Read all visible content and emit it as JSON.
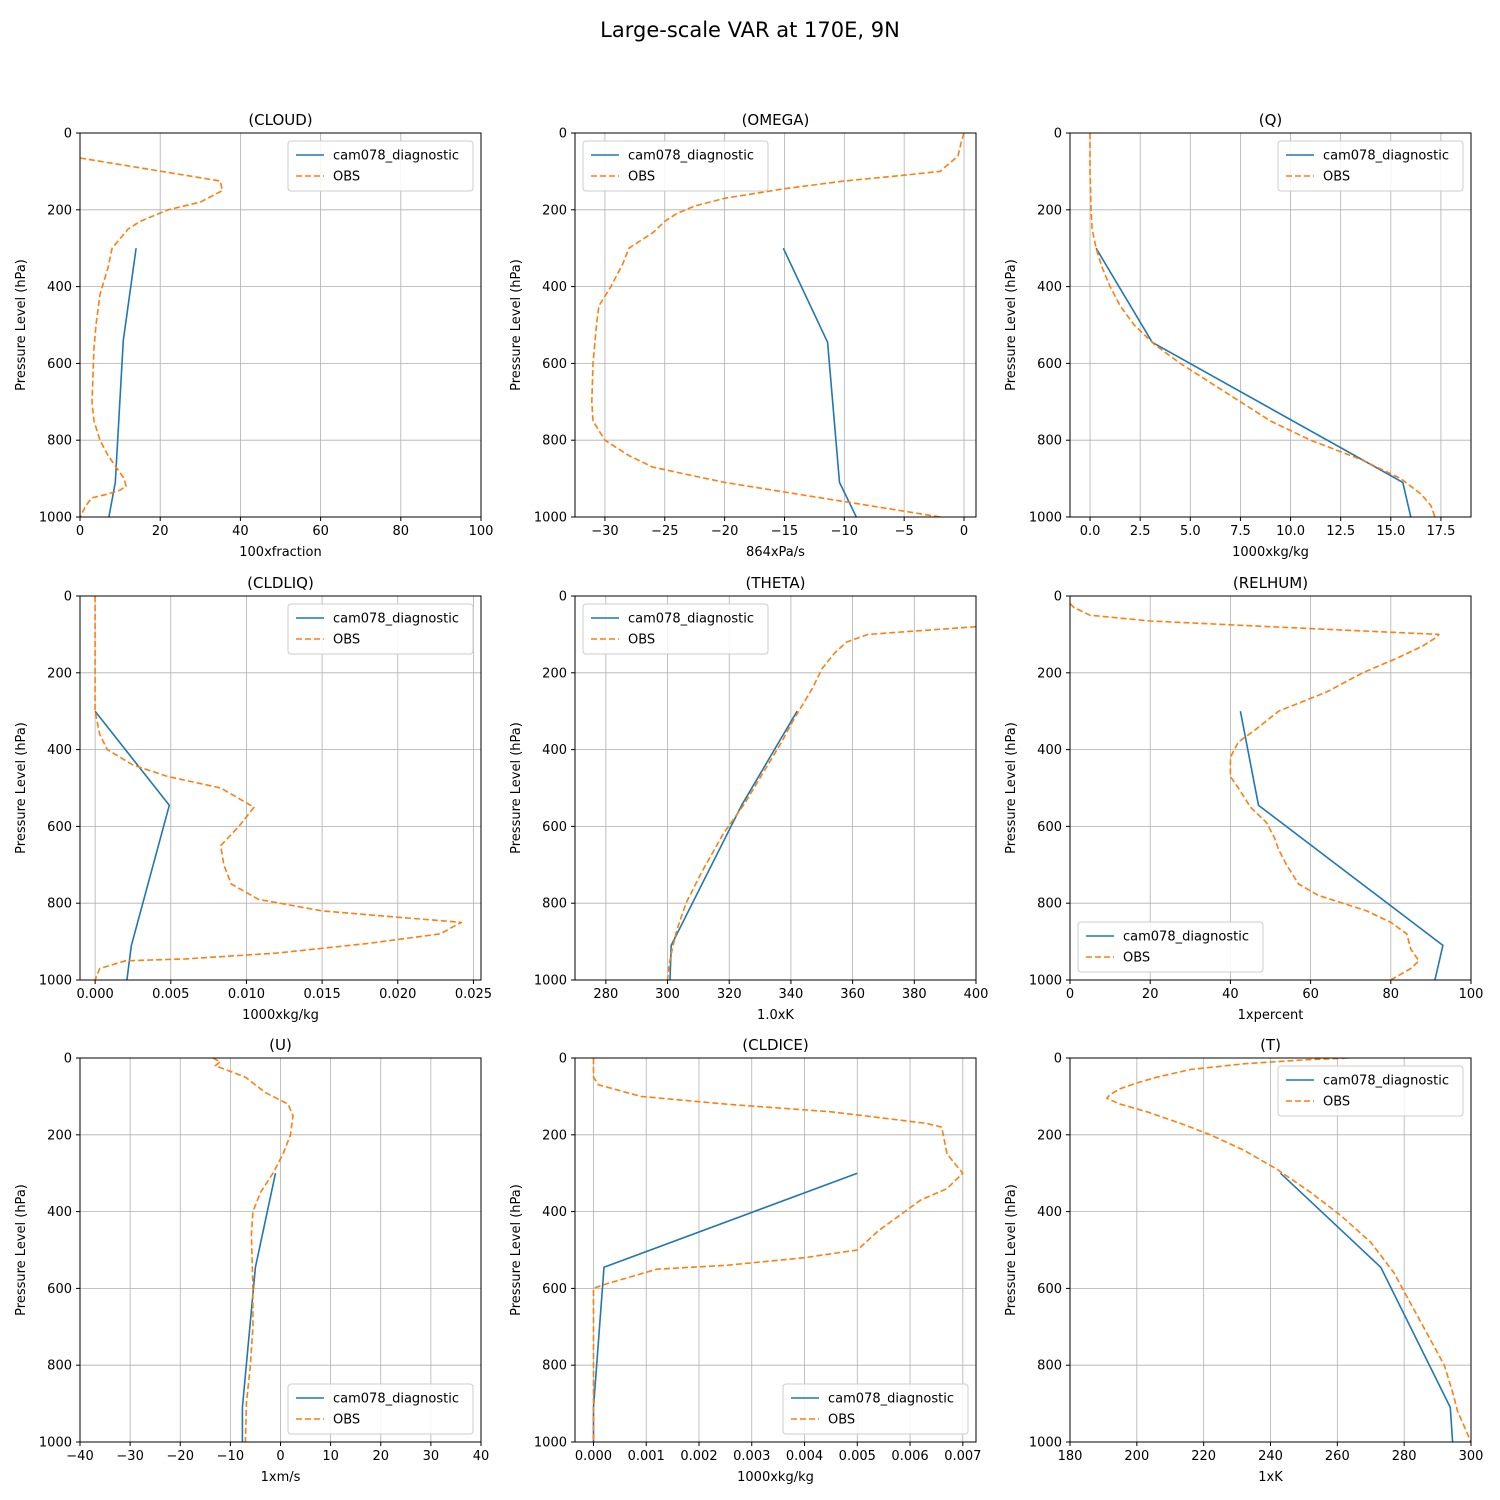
{
  "figure_title": "Large-scale VAR at 170E, 9N",
  "colors": {
    "model": "#1f77b4",
    "obs": "#ff7f0e",
    "grid": "#b0b0b0"
  },
  "chart_data": [
    {
      "type": "line",
      "title": "(CLOUD)",
      "xlabel": "100xfraction",
      "ylabel": "Pressure Level (hPa)",
      "xlim": [
        0,
        100
      ],
      "ylim": [
        1000,
        0
      ],
      "y_inverted": true,
      "xticks": [
        0,
        20,
        40,
        60,
        80,
        100
      ],
      "xtick_labels": [
        "0",
        "20",
        "40",
        "60",
        "80",
        "100"
      ],
      "yticks": [
        0,
        200,
        400,
        600,
        800,
        1000
      ],
      "ytick_labels": [
        "0",
        "200",
        "400",
        "600",
        "800",
        "1000"
      ],
      "grid": true,
      "legend_loc": "upper-right",
      "series": [
        {
          "name": "cam078_diagnostic",
          "style": "solid",
          "x": [
            14.0,
            10.8,
            8.8,
            7.2
          ],
          "y": [
            300,
            540,
            910,
            1000
          ]
        },
        {
          "name": "OBS",
          "style": "dashed",
          "x": [
            0,
            35,
            35.5,
            30,
            22,
            15,
            12,
            8,
            7,
            5,
            4,
            3.5,
            3,
            3.5,
            5,
            7,
            9,
            11,
            11.5,
            10,
            7,
            3,
            1.5,
            0
          ],
          "y": [
            65,
            125,
            150,
            180,
            200,
            230,
            250,
            300,
            350,
            420,
            500,
            560,
            700,
            750,
            800,
            840,
            870,
            900,
            920,
            930,
            940,
            950,
            970,
            1000
          ]
        }
      ]
    },
    {
      "type": "line",
      "title": "(OMEGA)",
      "xlabel": "864xPa/s",
      "ylabel": "Pressure Level (hPa)",
      "xlim": [
        -32.5,
        1
      ],
      "ylim": [
        1000,
        0
      ],
      "y_inverted": true,
      "xticks": [
        -30,
        -25,
        -20,
        -15,
        -10,
        -5,
        0
      ],
      "xtick_labels": [
        "−30",
        "−25",
        "−20",
        "−15",
        "−10",
        "−5",
        "0"
      ],
      "yticks": [
        0,
        200,
        400,
        600,
        800,
        1000
      ],
      "ytick_labels": [
        "0",
        "200",
        "400",
        "600",
        "800",
        "1000"
      ],
      "grid": true,
      "legend_loc": "upper-left",
      "series": [
        {
          "name": "cam078_diagnostic",
          "style": "solid",
          "x": [
            -15.1,
            -11.4,
            -10.4,
            -9.0
          ],
          "y": [
            300,
            545,
            910,
            1000
          ]
        },
        {
          "name": "OBS",
          "style": "dashed",
          "x": [
            0,
            -0.2,
            -0.5,
            -2,
            -5,
            -10,
            -15,
            -20,
            -22.5,
            -24,
            -25,
            -26,
            -27,
            -28,
            -28.5,
            -29.5,
            -30.5,
            -30.7,
            -31,
            -31.1,
            -31,
            -30,
            -28,
            -26,
            -23,
            -20,
            -16,
            -10,
            -5,
            -2
          ],
          "y": [
            0,
            20,
            60,
            100,
            110,
            125,
            145,
            170,
            190,
            210,
            230,
            260,
            280,
            300,
            340,
            400,
            450,
            500,
            600,
            700,
            750,
            800,
            840,
            870,
            890,
            910,
            930,
            960,
            985,
            1000
          ]
        }
      ]
    },
    {
      "type": "line",
      "title": "(Q)",
      "xlabel": "1000xkg/kg",
      "ylabel": "Pressure Level (hPa)",
      "xlim": [
        -1,
        19
      ],
      "ylim": [
        1000,
        0
      ],
      "y_inverted": true,
      "xticks": [
        0,
        2.5,
        5,
        7.5,
        10,
        12.5,
        15,
        17.5
      ],
      "xtick_labels": [
        "0.0",
        "2.5",
        "5.0",
        "7.5",
        "10.0",
        "12.5",
        "15.0",
        "17.5"
      ],
      "yticks": [
        0,
        200,
        400,
        600,
        800,
        1000
      ],
      "ytick_labels": [
        "0",
        "200",
        "400",
        "600",
        "800",
        "1000"
      ],
      "grid": true,
      "legend_loc": "upper-right",
      "series": [
        {
          "name": "cam078_diagnostic",
          "style": "solid",
          "x": [
            0.3,
            3.1,
            15.6,
            16.0
          ],
          "y": [
            300,
            545,
            910,
            1000
          ]
        },
        {
          "name": "OBS",
          "style": "dashed",
          "x": [
            0,
            0,
            0.05,
            0.1,
            0.3,
            0.6,
            1.0,
            1.5,
            2.2,
            3.2,
            4.5,
            6.0,
            7.5,
            9.0,
            11.0,
            13.5,
            15.5,
            16.5,
            17.0,
            17.2
          ],
          "y": [
            0,
            100,
            200,
            250,
            300,
            350,
            400,
            450,
            500,
            550,
            600,
            650,
            700,
            750,
            800,
            850,
            900,
            940,
            970,
            1000
          ]
        }
      ]
    },
    {
      "type": "line",
      "title": "(CLDLIQ)",
      "xlabel": "1000xkg/kg",
      "ylabel": "Pressure Level (hPa)",
      "xlim": [
        -0.001,
        0.0255
      ],
      "ylim": [
        1000,
        0
      ],
      "y_inverted": true,
      "xticks": [
        0,
        0.005,
        0.01,
        0.015,
        0.02,
        0.025
      ],
      "xtick_labels": [
        "0.000",
        "0.005",
        "0.010",
        "0.015",
        "0.020",
        "0.025"
      ],
      "yticks": [
        0,
        200,
        400,
        600,
        800,
        1000
      ],
      "ytick_labels": [
        "0",
        "200",
        "400",
        "600",
        "800",
        "1000"
      ],
      "grid": true,
      "legend_loc": "upper-right",
      "series": [
        {
          "name": "cam078_diagnostic",
          "style": "solid",
          "x": [
            0.0,
            0.0049,
            0.0024,
            0.0021
          ],
          "y": [
            300,
            545,
            910,
            1000
          ]
        },
        {
          "name": "OBS",
          "style": "dashed",
          "x": [
            0,
            0,
            0,
            0,
            0.0003,
            0.0008,
            0.0025,
            0.0048,
            0.0083,
            0.0105,
            0.0095,
            0.0083,
            0.0085,
            0.009,
            0.0108,
            0.015,
            0.018,
            0.0242,
            0.0228,
            0.018,
            0.012,
            0.006,
            0.002,
            0.0003,
            0
          ],
          "y": [
            0,
            100,
            200,
            300,
            360,
            400,
            440,
            470,
            500,
            550,
            600,
            650,
            700,
            750,
            790,
            820,
            830,
            850,
            880,
            905,
            930,
            945,
            950,
            970,
            1000
          ]
        }
      ]
    },
    {
      "type": "line",
      "title": "(THETA)",
      "xlabel": "1.0xK",
      "ylabel": "Pressure Level (hPa)",
      "xlim": [
        270,
        400
      ],
      "ylim": [
        1000,
        0
      ],
      "y_inverted": true,
      "xticks": [
        280,
        300,
        320,
        340,
        360,
        380,
        400
      ],
      "xtick_labels": [
        "280",
        "300",
        "320",
        "340",
        "360",
        "380",
        "400"
      ],
      "yticks": [
        0,
        200,
        400,
        600,
        800,
        1000
      ],
      "ytick_labels": [
        "0",
        "200",
        "400",
        "600",
        "800",
        "1000"
      ],
      "grid": true,
      "legend_loc": "upper-left",
      "series": [
        {
          "name": "cam078_diagnostic",
          "style": "solid",
          "x": [
            342.0,
            324.0,
            301.2,
            300.8
          ],
          "y": [
            300,
            545,
            910,
            1000
          ]
        },
        {
          "name": "OBS",
          "style": "dashed",
          "x": [
            400,
            365,
            358,
            354,
            350,
            347,
            344,
            341,
            337,
            331,
            325,
            318,
            311,
            306,
            303,
            301.5,
            300.5,
            300
          ],
          "y": [
            80,
            100,
            120,
            150,
            190,
            240,
            280,
            320,
            380,
            460,
            540,
            620,
            720,
            800,
            870,
            920,
            960,
            1000
          ]
        }
      ]
    },
    {
      "type": "line",
      "title": "(RELHUM)",
      "xlabel": "1xpercent",
      "ylabel": "Pressure Level (hPa)",
      "xlim": [
        0,
        100
      ],
      "ylim": [
        1000,
        0
      ],
      "y_inverted": true,
      "xticks": [
        0,
        20,
        40,
        60,
        80,
        100
      ],
      "xtick_labels": [
        "0",
        "20",
        "40",
        "60",
        "80",
        "100"
      ],
      "yticks": [
        0,
        200,
        400,
        600,
        800,
        1000
      ],
      "ytick_labels": [
        "0",
        "200",
        "400",
        "600",
        "800",
        "1000"
      ],
      "grid": true,
      "legend_loc": "lower-left",
      "series": [
        {
          "name": "cam078_diagnostic",
          "style": "solid",
          "x": [
            42.5,
            47.0,
            93.0,
            91.0
          ],
          "y": [
            300,
            545,
            910,
            1000
          ]
        },
        {
          "name": "OBS",
          "style": "dashed",
          "x": [
            0,
            1,
            5,
            20,
            60,
            92,
            91,
            88,
            82,
            73,
            64,
            52,
            46,
            42,
            40,
            40,
            42,
            45,
            49,
            51,
            52,
            54,
            57,
            62,
            68,
            74,
            80,
            84,
            85,
            87,
            85,
            80
          ],
          "y": [
            20,
            30,
            50,
            65,
            85,
            100,
            110,
            130,
            160,
            200,
            250,
            300,
            350,
            380,
            420,
            470,
            500,
            550,
            590,
            630,
            660,
            700,
            750,
            780,
            800,
            820,
            850,
            880,
            920,
            950,
            970,
            1000
          ]
        }
      ]
    },
    {
      "type": "line",
      "title": "(U)",
      "xlabel": "1xm/s",
      "ylabel": "Pressure Level (hPa)",
      "xlim": [
        -40,
        40
      ],
      "ylim": [
        1000,
        0
      ],
      "y_inverted": true,
      "xticks": [
        -40,
        -30,
        -20,
        -10,
        0,
        10,
        20,
        30,
        40
      ],
      "xtick_labels": [
        "−40",
        "−30",
        "−20",
        "−10",
        "0",
        "10",
        "20",
        "30",
        "40"
      ],
      "yticks": [
        0,
        200,
        400,
        600,
        800,
        1000
      ],
      "ytick_labels": [
        "0",
        "200",
        "400",
        "600",
        "800",
        "1000"
      ],
      "grid": true,
      "legend_loc": "lower-right",
      "series": [
        {
          "name": "cam078_diagnostic",
          "style": "solid",
          "x": [
            -1.0,
            -5.0,
            -7.6,
            -7.6
          ],
          "y": [
            300,
            545,
            910,
            1000
          ]
        },
        {
          "name": "OBS",
          "style": "dashed",
          "x": [
            -13.5,
            -12,
            -13,
            -11,
            -7,
            -5,
            -3,
            1.5,
            2.5,
            2.0,
            0.5,
            -1.5,
            -4,
            -5.5,
            -5.8,
            -5.5,
            -5.5,
            -6,
            -6.8,
            -7.0
          ],
          "y": [
            0,
            10,
            20,
            30,
            50,
            70,
            90,
            120,
            150,
            200,
            250,
            300,
            350,
            400,
            460,
            600,
            700,
            800,
            900,
            1000
          ]
        }
      ]
    },
    {
      "type": "line",
      "title": "(CLDICE)",
      "xlabel": "1000xkg/kg",
      "ylabel": "Pressure Level (hPa)",
      "xlim": [
        -0.00035,
        0.00725
      ],
      "ylim": [
        1000,
        0
      ],
      "y_inverted": true,
      "xticks": [
        0,
        0.001,
        0.002,
        0.003,
        0.004,
        0.005,
        0.006,
        0.007
      ],
      "xtick_labels": [
        "0.000",
        "0.001",
        "0.002",
        "0.003",
        "0.004",
        "0.005",
        "0.006",
        "0.007"
      ],
      "yticks": [
        0,
        200,
        400,
        600,
        800,
        1000
      ],
      "ytick_labels": [
        "0",
        "200",
        "400",
        "600",
        "800",
        "1000"
      ],
      "grid": true,
      "legend_loc": "lower-right",
      "series": [
        {
          "name": "cam078_diagnostic",
          "style": "solid",
          "x": [
            0.005,
            0.0002,
            0.0,
            0.0
          ],
          "y": [
            300,
            545,
            910,
            1000
          ]
        },
        {
          "name": "OBS",
          "style": "dashed",
          "x": [
            0,
            0,
            0.0001,
            0.0009,
            0.0025,
            0.0045,
            0.0051,
            0.0063,
            0.0066,
            0.0067,
            0.007,
            0.0067,
            0.0062,
            0.0059,
            0.0054,
            0.005,
            0.004,
            0.0025,
            0.0012,
            0.0007,
            0.0002,
            0,
            0,
            0,
            0
          ],
          "y": [
            0,
            50,
            70,
            100,
            120,
            140,
            150,
            170,
            180,
            250,
            300,
            340,
            370,
            400,
            450,
            500,
            520,
            540,
            550,
            570,
            590,
            600,
            700,
            900,
            1000
          ]
        }
      ]
    },
    {
      "type": "line",
      "title": "(T)",
      "xlabel": "1xK",
      "ylabel": "Pressure Level (hPa)",
      "xlim": [
        180,
        300
      ],
      "ylim": [
        1000,
        0
      ],
      "y_inverted": true,
      "xticks": [
        180,
        200,
        220,
        240,
        260,
        280,
        300
      ],
      "xtick_labels": [
        "180",
        "200",
        "220",
        "240",
        "260",
        "280",
        "300"
      ],
      "yticks": [
        0,
        200,
        400,
        600,
        800,
        1000
      ],
      "ytick_labels": [
        "0",
        "200",
        "400",
        "600",
        "800",
        "1000"
      ],
      "grid": true,
      "legend_loc": "upper-right",
      "series": [
        {
          "name": "cam078_diagnostic",
          "style": "solid",
          "x": [
            243.0,
            273.0,
            293.8,
            294.5
          ],
          "y": [
            300,
            545,
            910,
            1000
          ]
        },
        {
          "name": "OBS",
          "style": "dashed",
          "x": [
            263,
            250,
            232,
            216,
            206,
            200,
            195,
            192,
            191,
            195,
            203,
            213,
            222,
            232,
            242,
            252,
            261,
            270,
            277,
            282,
            287,
            292,
            294.5,
            296,
            298,
            300
          ],
          "y": [
            0,
            5,
            15,
            30,
            50,
            65,
            80,
            95,
            105,
            120,
            140,
            170,
            200,
            240,
            290,
            350,
            410,
            480,
            560,
            640,
            720,
            800,
            870,
            920,
            960,
            1000
          ]
        }
      ]
    }
  ]
}
